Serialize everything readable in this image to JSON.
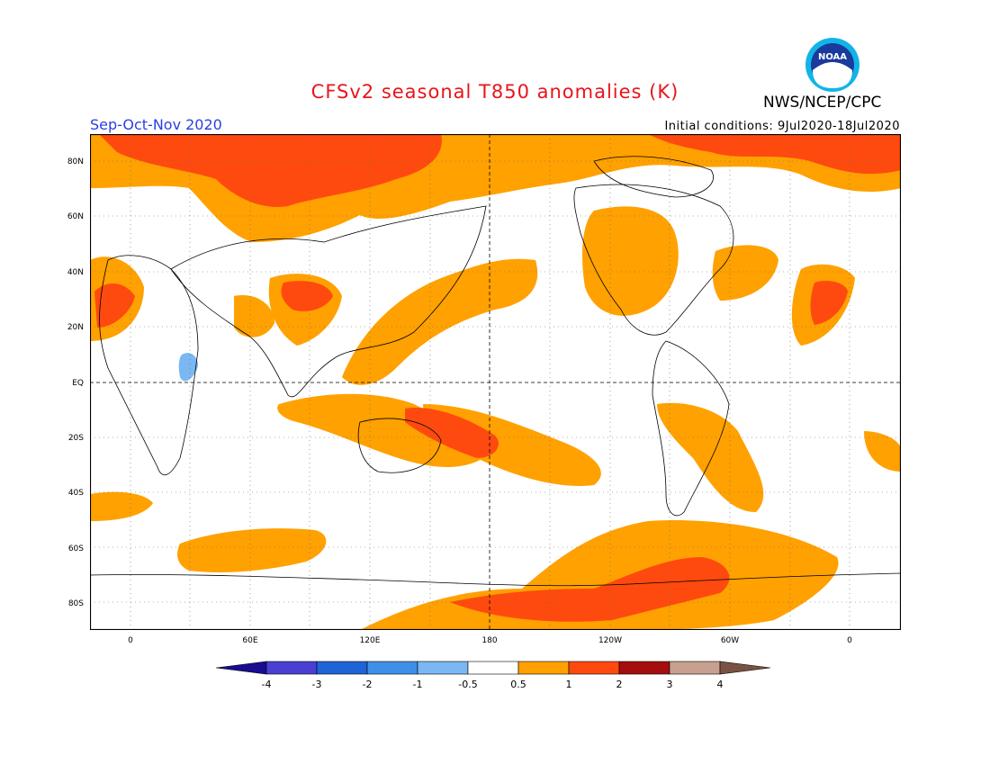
{
  "title": "CFSv2 seasonal T850 anomalies (K)",
  "agency": "NWS/NCEP/CPC",
  "logo_text": "NOAA",
  "season": "Sep-Oct-Nov 2020",
  "initial_conditions": "Initial conditions: 9Jul2020-18Jul2020",
  "lat_labels": [
    "80N",
    "60N",
    "40N",
    "20N",
    "EQ",
    "20S",
    "40S",
    "60S",
    "80S"
  ],
  "lon_labels": [
    "0",
    "60E",
    "120E",
    "180",
    "120W",
    "60W",
    "0"
  ],
  "colorbar": {
    "ticks": [
      "-4",
      "-3",
      "-2",
      "-1",
      "-0.5",
      "0.5",
      "1",
      "2",
      "3",
      "4"
    ],
    "colors": [
      "#1a0c8f",
      "#4a3fd2",
      "#1e64d6",
      "#3f8fe8",
      "#7bb7f3",
      "#ffffff",
      "#ffa100",
      "#ff4a0f",
      "#a60d0d",
      "#c8a090",
      "#7a5244"
    ]
  },
  "anomaly_colors": {
    "warm_0_5_to_1": "#ffa100",
    "warm_1_to_2": "#ff4a0f",
    "warm_2_to_3": "#a60d0d",
    "cool_neg1_to_neg0_5": "#7bb7f3"
  }
}
